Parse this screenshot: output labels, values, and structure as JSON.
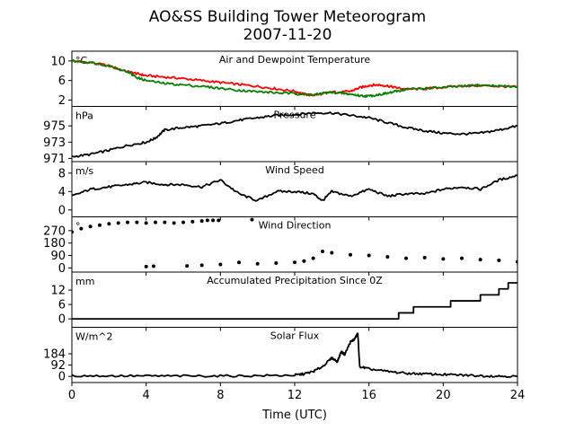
{
  "title_line1": "AO&SS Building Tower Meteorogram",
  "title_line2": "2007-11-20",
  "xlabel": "Time (UTC)",
  "x_ticks": [
    "0",
    "4",
    "8",
    "12",
    "16",
    "20",
    "24"
  ],
  "chart_data": {
    "type": "line",
    "xlim": [
      0,
      24
    ],
    "x_ticks": [
      0,
      4,
      8,
      12,
      16,
      20,
      24
    ],
    "xlabel": "Time (UTC)",
    "panels": [
      {
        "title": "Air and Dewpoint Temperature",
        "unit": "°C",
        "ylim": [
          0.7,
          12
        ],
        "y_ticks": [
          2,
          6,
          10
        ],
        "y_tick_labels": [
          "2",
          "6",
          "10"
        ],
        "series": [
          {
            "color": "#ff0000",
            "x": [
              0,
              1,
              2,
              3,
              3.5,
              4,
              5,
              6,
              7,
              8,
              9,
              10,
              11,
              12,
              12.5,
              13,
              13.5,
              14,
              14.5,
              15,
              15.5,
              16,
              16.5,
              17,
              17.5,
              18,
              19,
              20,
              21,
              22,
              23,
              24
            ],
            "y": [
              10,
              9.7,
              9.0,
              7.8,
              7.4,
              7.0,
              6.7,
              6.4,
              6.0,
              5.6,
              5.2,
              4.8,
              4.3,
              3.8,
              3.2,
              3.0,
              3.3,
              3.6,
              3.6,
              3.8,
              4.5,
              5.0,
              5.1,
              4.9,
              4.5,
              4.2,
              4.3,
              4.6,
              4.9,
              5.0,
              4.8,
              4.7
            ]
          },
          {
            "color": "#008000",
            "x": [
              0,
              1,
              2,
              3,
              3.5,
              4,
              5,
              6,
              7,
              8,
              9,
              10,
              11,
              12,
              12.5,
              13,
              13.5,
              14,
              14.5,
              15,
              15.5,
              16,
              16.5,
              17,
              17.5,
              18,
              19,
              20,
              21,
              22,
              23,
              24
            ],
            "y": [
              10,
              9.7,
              9.0,
              7.8,
              6.6,
              6.0,
              5.4,
              5.1,
              4.8,
              4.4,
              4.0,
              3.7,
              3.5,
              3.3,
              3.2,
              3.0,
              3.4,
              3.6,
              3.4,
              3.2,
              2.9,
              2.8,
              3.1,
              3.4,
              3.8,
              4.2,
              4.4,
              4.6,
              4.8,
              5.0,
              4.9,
              4.7
            ]
          }
        ]
      },
      {
        "title": "Pressure",
        "unit": "hPa",
        "ylim": [
          970.6,
          977.4
        ],
        "y_ticks": [
          971,
          973,
          975
        ],
        "y_tick_labels": [
          "971",
          "973",
          "975"
        ],
        "series": [
          {
            "color": "#000000",
            "x": [
              0,
              1,
              2,
              3,
              4,
              4.5,
              5,
              6,
              7,
              8,
              9,
              10,
              11,
              12,
              13,
              14,
              15,
              16,
              17,
              18,
              19,
              20,
              21,
              22,
              23,
              24
            ],
            "y": [
              971.2,
              971.5,
              972.0,
              972.6,
              973.0,
              973.5,
              974.5,
              974.8,
              975.0,
              975.3,
              975.7,
              976.0,
              976.3,
              976.4,
              976.6,
              976.6,
              976.3,
              976.0,
              975.4,
              974.8,
              974.4,
              974.1,
              974.0,
              974.1,
              974.5,
              975.0
            ]
          }
        ]
      },
      {
        "title": "Wind Speed",
        "unit": "m/s",
        "ylim": [
          -1.5,
          10.5
        ],
        "y_ticks": [
          0,
          4,
          8
        ],
        "y_tick_labels": [
          "0",
          "4",
          "8"
        ],
        "series": [
          {
            "color": "#000000",
            "x": [
              0,
              1,
              2,
              3,
              4,
              5,
              6,
              7,
              8,
              9,
              10,
              11,
              12,
              13,
              13.5,
              14,
              15,
              16,
              17,
              18,
              19,
              20,
              21,
              22,
              23,
              24
            ],
            "y": [
              3.0,
              4.5,
              5.0,
              5.5,
              6.0,
              5.5,
              5.5,
              5.0,
              6.5,
              3.5,
              2.0,
              4.0,
              4.0,
              3.5,
              2.0,
              4.0,
              3.0,
              4.5,
              3.0,
              3.5,
              3.5,
              4.5,
              5.0,
              4.5,
              6.5,
              7.5
            ]
          }
        ]
      },
      {
        "title": "Wind Direction",
        "unit": "°",
        "ylim": [
          -30,
          370
        ],
        "y_ticks": [
          0,
          90,
          180,
          270
        ],
        "y_tick_labels": [
          "0",
          "90",
          "180",
          "270"
        ],
        "series": [
          {
            "color": "#000000",
            "style": "dots",
            "x": [
              0,
              0.5,
              1,
              1.5,
              2,
              2.5,
              3,
              3.5,
              4,
              4.5,
              5,
              5.5,
              6,
              6.5,
              7,
              7.3,
              7.6,
              7.9,
              9.7,
              4.0,
              4.4,
              6.2,
              7,
              8,
              9,
              10,
              11,
              12,
              12.5,
              13,
              13.5,
              14,
              15,
              16,
              17,
              18,
              19,
              20,
              21,
              22,
              23,
              24
            ],
            "y": [
              260,
              285,
              300,
              310,
              320,
              325,
              330,
              330,
              325,
              330,
              330,
              325,
              330,
              335,
              340,
              345,
              345,
              345,
              350,
              10,
              12,
              15,
              20,
              25,
              40,
              30,
              35,
              40,
              50,
              70,
              120,
              110,
              95,
              90,
              80,
              70,
              75,
              65,
              70,
              60,
              55,
              45
            ]
          }
        ]
      },
      {
        "title": "Accumulated Precipitation Since 0Z",
        "unit": "mm",
        "ylim": [
          -3.5,
          19.5
        ],
        "y_ticks": [
          0,
          6,
          12
        ],
        "y_tick_labels": [
          "0",
          "6",
          "12"
        ],
        "series": [
          {
            "color": "#000000",
            "style": "step",
            "x": [
              0,
              17.6,
              18.4,
              20.4,
              22.0,
              23.0,
              23.5,
              24
            ],
            "y": [
              0,
              2.5,
              5.0,
              7.5,
              10.0,
              12.5,
              15.0,
              15.0
            ]
          }
        ]
      },
      {
        "title": "Solar Flux",
        "unit": "W/m^2",
        "ylim": [
          -50,
          400
        ],
        "y_ticks": [
          0,
          92,
          184
        ],
        "y_tick_labels": [
          "0",
          "92",
          "184"
        ],
        "series": [
          {
            "color": "#000000",
            "x": [
              0,
              2,
              4,
              6,
              8,
              10,
              12,
              12.5,
              13,
              13.5,
              14,
              14.3,
              14.5,
              14.7,
              15,
              15.2,
              15.4,
              15.5,
              16,
              17,
              18,
              19,
              20,
              21,
              22,
              23,
              24
            ],
            "y": [
              5,
              4,
              3,
              3,
              4,
              5,
              10,
              20,
              40,
              80,
              150,
              120,
              200,
              180,
              280,
              300,
              350,
              80,
              60,
              40,
              25,
              20,
              15,
              10,
              5,
              2,
              0
            ]
          }
        ]
      }
    ]
  }
}
